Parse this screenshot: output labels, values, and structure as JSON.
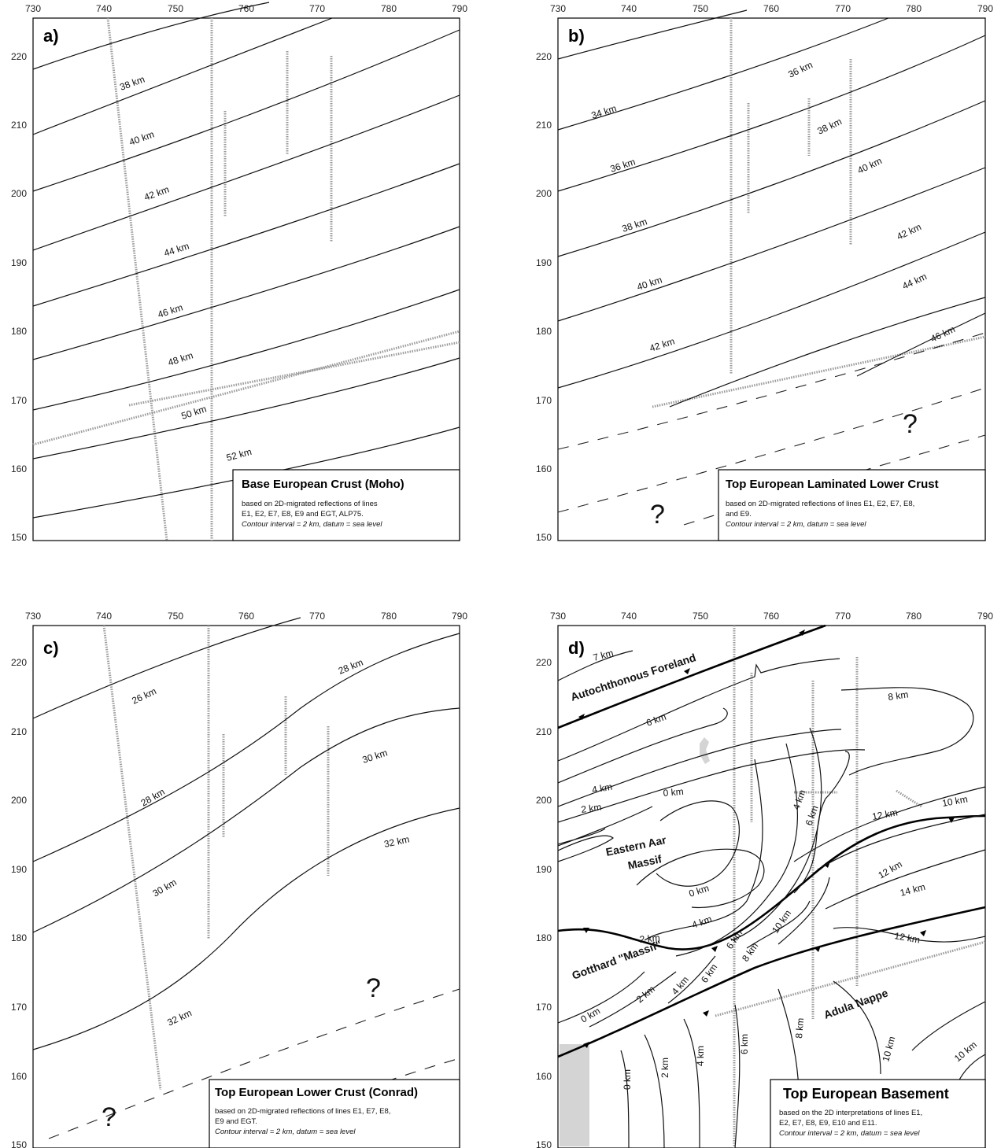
{
  "x_ticks": [
    "730",
    "740",
    "750",
    "760",
    "770",
    "780",
    "790"
  ],
  "y_ticks": [
    "220",
    "210",
    "200",
    "190",
    "180",
    "170",
    "160",
    "150"
  ],
  "panels": [
    {
      "id": "a",
      "label": "a)",
      "legend": {
        "title": "Base European Crust (Moho)",
        "lines": [
          "based on 2D-migrated reflections of lines",
          "E1, E2, E7, E8, E9 and EGT, ALP75."
        ],
        "italic": "Contour interval = 2 km, datum = sea level"
      },
      "contour_labels": [
        "38 km",
        "40 km",
        "42 km",
        "44 km",
        "46 km",
        "48 km",
        "50 km",
        "52 km"
      ],
      "question_marks": []
    },
    {
      "id": "b",
      "label": "b)",
      "legend": {
        "title": "Top European Laminated Lower Crust",
        "lines": [
          "based on 2D-migrated reflections of lines E1, E2, E7, E8,",
          "and E9."
        ],
        "italic": "Contour interval = 2 km, datum = sea level"
      },
      "contour_labels": [
        "34 km",
        "36 km",
        "36 km",
        "38 km",
        "38 km",
        "40 km",
        "40 km",
        "42 km",
        "42 km",
        "44 km",
        "46 km"
      ],
      "question_marks": [
        "?",
        "?"
      ]
    },
    {
      "id": "c",
      "label": "c)",
      "legend": {
        "title": "Top European Lower Crust (Conrad)",
        "lines": [
          "based on 2D-migrated reflections of lines E1, E7, E8,",
          "E9 and EGT."
        ],
        "italic": "Contour interval = 2 km, datum = sea level"
      },
      "contour_labels": [
        "26 km",
        "28 km",
        "28 km",
        "30 km",
        "30 km",
        "32 km",
        "32 km"
      ],
      "question_marks": [
        "?",
        "?"
      ]
    },
    {
      "id": "d",
      "label": "d)",
      "legend": {
        "title": "Top European Basement",
        "lines": [
          "based on the 2D interpretations of lines E1,",
          "E2, E7, E8, E9, E10 and E11."
        ],
        "italic": "Contour interval = 2 km, datum = sea level"
      },
      "contour_labels": [
        "7 km",
        "6 km",
        "8 km",
        "4 km",
        "2 km",
        "0 km",
        "10 km",
        "12 km",
        "4 km",
        "6 km",
        "12 km",
        "0 km",
        "14 km",
        "2 km",
        "4 km",
        "6 km",
        "8 km",
        "10 km",
        "12 km",
        "2 km",
        "4 km",
        "6 km",
        "0 km",
        "0 km",
        "2 km",
        "4 km",
        "6 km",
        "8 km",
        "10 km",
        "10 km"
      ],
      "regions": [
        "Autochthonous Foreland",
        "Eastern Aar",
        "Massif",
        "Gotthard \"Massif\"",
        "Adula Nappe"
      ]
    }
  ]
}
